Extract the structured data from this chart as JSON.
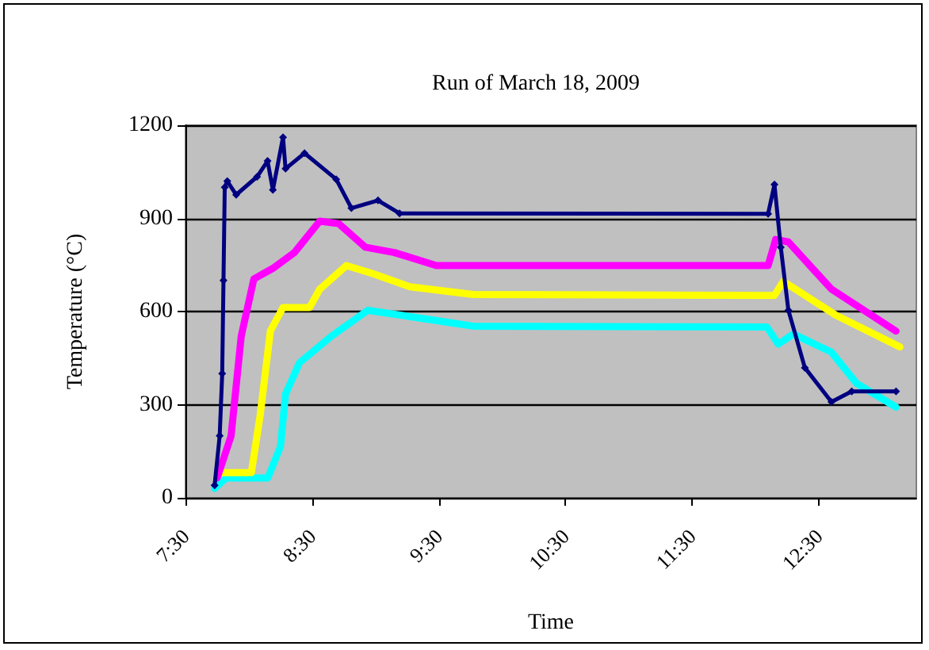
{
  "chart_data": {
    "type": "line",
    "title": "Run of March 18, 2009",
    "xlabel": "Time",
    "ylabel": "Temperature (°C)",
    "xlim": [
      7.5,
      13.27
    ],
    "xticks": [
      {
        "value": 7.5,
        "label": "7:30"
      },
      {
        "value": 8.5,
        "label": "8:30"
      },
      {
        "value": 9.5,
        "label": "9:30"
      },
      {
        "value": 10.5,
        "label": "10:30"
      },
      {
        "value": 11.5,
        "label": "11:30"
      },
      {
        "value": 12.5,
        "label": "12:30"
      }
    ],
    "ylim": [
      0,
      1200
    ],
    "yticks": [
      0,
      300,
      600,
      900,
      1200
    ],
    "grid": "y",
    "marker": "none",
    "line_style": "solid",
    "series": [
      {
        "color": "#00ffff",
        "x": [
          7.73,
          7.82,
          8.15,
          8.25,
          8.29,
          8.4,
          8.65,
          8.94,
          9.35,
          9.77,
          12.09,
          12.18,
          12.3,
          12.6,
          12.8,
          13.11
        ],
        "values": [
          30,
          64,
          64,
          165,
          334,
          435,
          520,
          604,
          579,
          553,
          550,
          495,
          528,
          469,
          368,
          292
        ]
      },
      {
        "color": "#ffff00",
        "x": [
          7.77,
          8.02,
          8.09,
          8.17,
          8.27,
          8.48,
          8.56,
          8.77,
          8.98,
          9.27,
          9.77,
          12.15,
          12.22,
          12.64,
          13.14
        ],
        "values": [
          81,
          81,
          267,
          537,
          613,
          613,
          672,
          748,
          722,
          680,
          655,
          652,
          697,
          587,
          486
        ]
      },
      {
        "color": "#ff00ff",
        "x": [
          7.75,
          7.86,
          7.94,
          8.04,
          8.19,
          8.36,
          8.56,
          8.71,
          8.92,
          9.15,
          9.48,
          12.1,
          12.16,
          12.26,
          12.6,
          13.11
        ],
        "values": [
          64,
          199,
          520,
          705,
          739,
          790,
          891,
          883,
          807,
          790,
          748,
          748,
          832,
          824,
          672,
          537
        ]
      },
      {
        "color": "#000080",
        "marker": "diamond",
        "x": [
          7.73,
          7.77,
          7.79,
          7.8,
          7.81,
          7.83,
          7.9,
          8.065,
          8.148,
          8.19,
          8.27,
          8.29,
          8.44,
          8.69,
          8.81,
          9.02,
          9.19,
          12.1,
          12.15,
          12.2,
          12.26,
          12.39,
          12.6,
          12.76,
          13.11
        ],
        "values": [
          40,
          200,
          400,
          700,
          1000,
          1020,
          976,
          1034,
          1085,
          992,
          1161,
          1060,
          1110,
          1026,
          933,
          958,
          916,
          915,
          1009,
          807,
          604,
          419,
          309,
          343,
          343
        ]
      }
    ]
  }
}
